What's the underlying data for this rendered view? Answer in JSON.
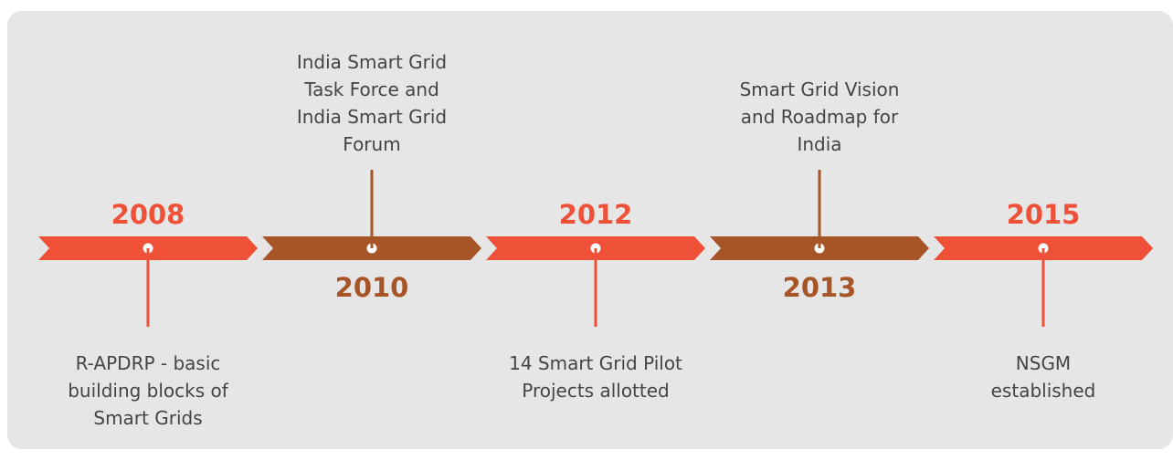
{
  "events": [
    {
      "year": "2008",
      "description": [
        "R-APDRP - basic",
        "building blocks of",
        "Smart Grids"
      ]
    },
    {
      "year": "2010",
      "description": [
        "India Smart Grid",
        "Task Force and",
        "India Smart Grid",
        "Forum"
      ]
    },
    {
      "year": "2012",
      "description": [
        "14 Smart Grid Pilot",
        "Projects allotted"
      ]
    },
    {
      "year": "2013",
      "description": [
        "Smart Grid Vision",
        "and Roadmap for",
        "India"
      ]
    },
    {
      "year": "2015",
      "description": [
        "NSGM",
        "established"
      ]
    }
  ]
}
